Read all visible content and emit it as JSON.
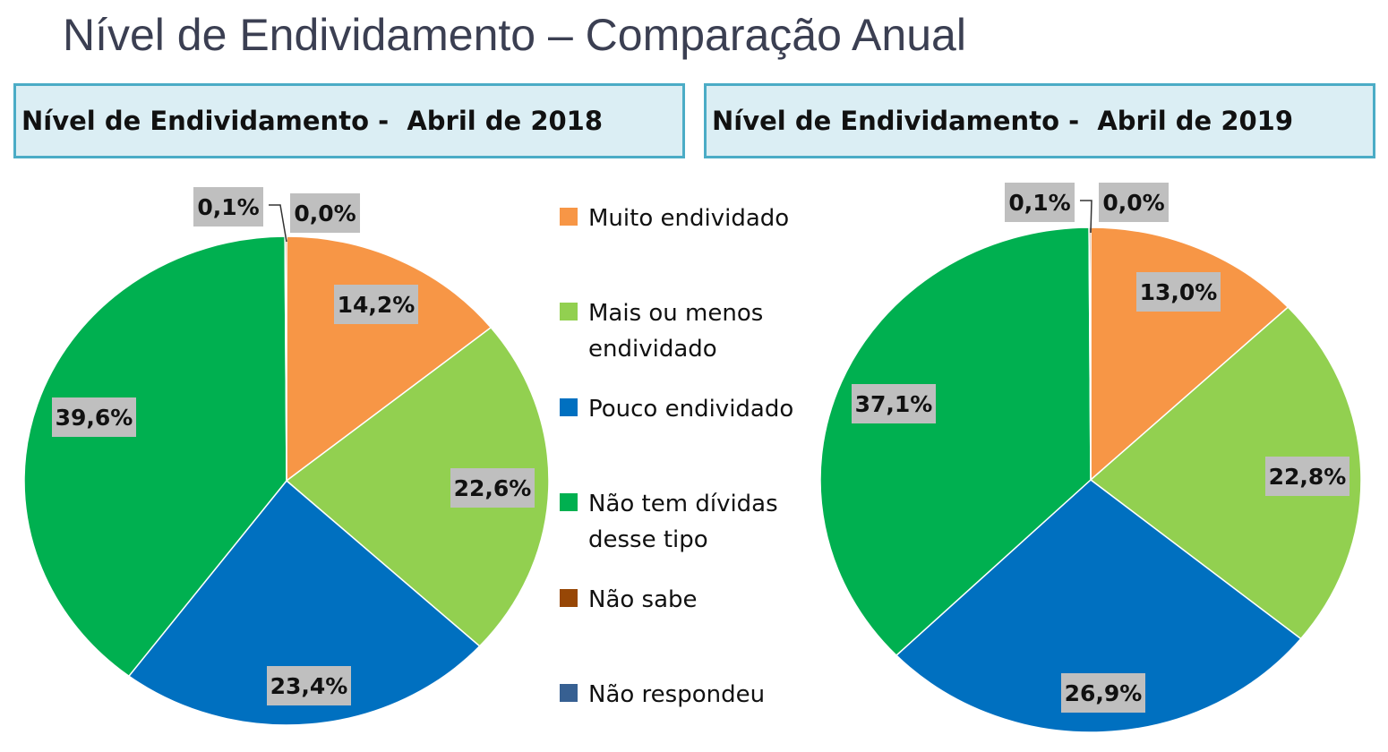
{
  "title": "Nível de Endividamento – Comparação Anual",
  "legend": [
    {
      "label": "Muito endividado",
      "color": "#f79646"
    },
    {
      "label": "Mais ou menos endividado",
      "color": "#92d050"
    },
    {
      "label": "Pouco endividado",
      "color": "#0070c0"
    },
    {
      "label": "Não tem dívidas desse tipo",
      "color": "#00b050"
    },
    {
      "label": "Não sabe",
      "color": "#974706"
    },
    {
      "label": "Não respondeu",
      "color": "#376092"
    }
  ],
  "chart_data": [
    {
      "type": "pie",
      "title": "Nível de Endividamento -  Abril de 2018",
      "categories": [
        "Muito endividado",
        "Mais ou menos endividado",
        "Pouco endividado",
        "Não tem dívidas desse tipo",
        "Não sabe",
        "Não respondeu"
      ],
      "values": [
        14.2,
        22.6,
        23.4,
        39.6,
        0.1,
        0.0
      ],
      "labels": [
        "14,2%",
        "22,6%",
        "23,4%",
        "39,6%",
        "0,1%",
        "0,0%"
      ]
    },
    {
      "type": "pie",
      "title": "Nível de Endividamento -  Abril de 2019",
      "categories": [
        "Muito endividado",
        "Mais ou menos endividado",
        "Pouco endividado",
        "Não tem dívidas desse tipo",
        "Não sabe",
        "Não respondeu"
      ],
      "values": [
        13.0,
        22.8,
        26.9,
        37.1,
        0.1,
        0.0
      ],
      "labels": [
        "13,0%",
        "22,8%",
        "26,9%",
        "37,1%",
        "0,1%",
        "0,0%"
      ]
    }
  ]
}
